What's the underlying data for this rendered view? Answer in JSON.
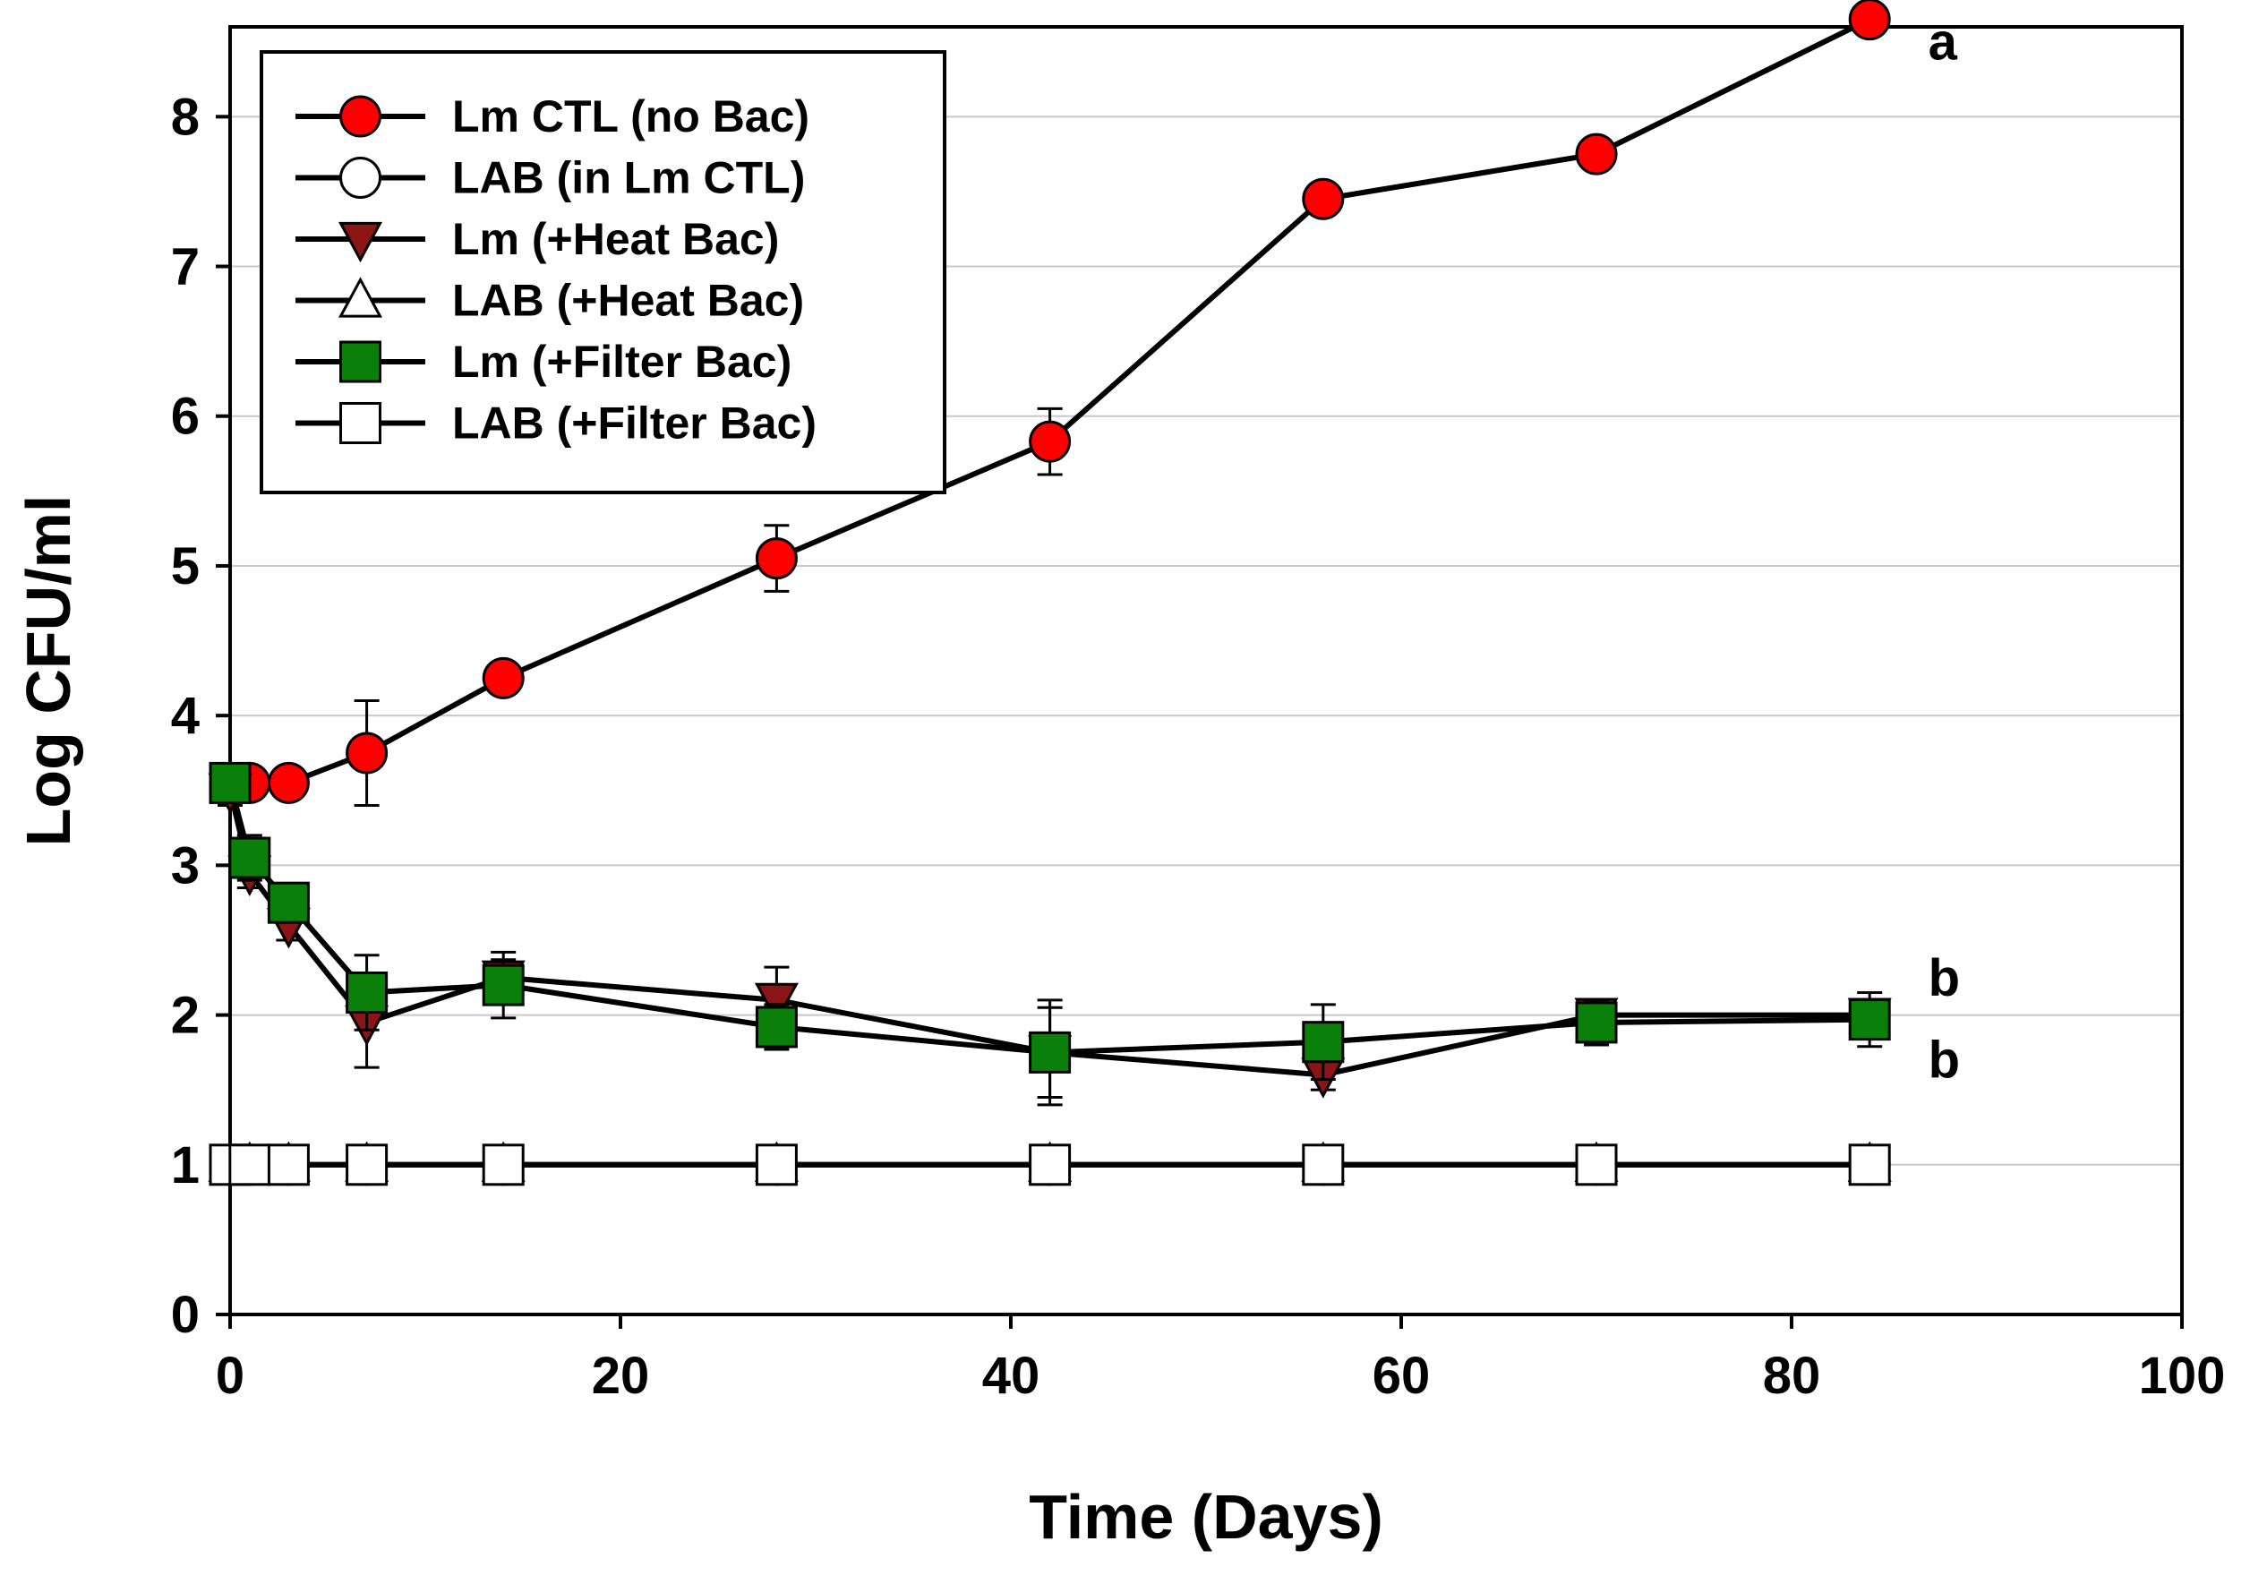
{
  "chart_data": {
    "type": "line",
    "title": "",
    "xlabel": "Time (Days)",
    "ylabel": "Log CFU/ml",
    "xlim": [
      0,
      100
    ],
    "ylim": [
      0,
      8.6
    ],
    "xticks": [
      0,
      20,
      40,
      60,
      80,
      100
    ],
    "yticks": [
      0,
      1,
      2,
      3,
      4,
      5,
      6,
      7,
      8
    ],
    "grid": "horizontal",
    "legend_position": "top-left",
    "x": [
      0,
      1,
      3,
      7,
      14,
      28,
      42,
      56,
      70,
      84
    ],
    "series": [
      {
        "name": "Lm CTL (no Bac)",
        "marker": "circle",
        "fill": "#ff0000",
        "values": [
          3.55,
          3.55,
          3.55,
          3.75,
          4.25,
          5.05,
          5.83,
          7.45,
          7.75,
          8.65
        ],
        "errors": [
          0.08,
          0.05,
          0.05,
          0.35,
          0.06,
          0.22,
          0.22,
          0.08,
          0.06,
          0.05
        ]
      },
      {
        "name": "LAB (in Lm CTL)",
        "marker": "circle",
        "fill": "#ffffff",
        "values": [
          1,
          1,
          1,
          1,
          1,
          1,
          1,
          1,
          1,
          1
        ],
        "errors": [
          0,
          0,
          0,
          0,
          0,
          0,
          0,
          0,
          0,
          0
        ]
      },
      {
        "name": "Lm (+Heat Bac)",
        "marker": "triangle-down",
        "fill": "#8b1414",
        "values": [
          3.5,
          2.95,
          2.6,
          1.95,
          2.25,
          2.1,
          1.75,
          1.6,
          2.0,
          2.0
        ],
        "errors": [
          0.1,
          0.1,
          0.1,
          0.3,
          0.12,
          0.22,
          0.35,
          0.1,
          0.1,
          0.1
        ]
      },
      {
        "name": "LAB (+Heat Bac)",
        "marker": "triangle-up",
        "fill": "#ffffff",
        "values": [
          1,
          1,
          1,
          1,
          1,
          1,
          1,
          1,
          1,
          1
        ],
        "errors": [
          0,
          0,
          0,
          0,
          0,
          0,
          0,
          0,
          0,
          0
        ]
      },
      {
        "name": "Lm (+Filter Bac)",
        "marker": "square",
        "fill": "#0a7f0a",
        "values": [
          3.55,
          3.05,
          2.75,
          2.15,
          2.2,
          1.92,
          1.75,
          1.82,
          1.95,
          1.97
        ],
        "errors": [
          0.05,
          0.15,
          0.1,
          0.25,
          0.22,
          0.15,
          0.3,
          0.25,
          0.15,
          0.18
        ]
      },
      {
        "name": "LAB (+Filter Bac)",
        "marker": "square",
        "fill": "#ffffff",
        "values": [
          1,
          1,
          1,
          1,
          1,
          1,
          1,
          1,
          1,
          1
        ],
        "errors": [
          0,
          0,
          0,
          0,
          0,
          0,
          0,
          0,
          0,
          0
        ]
      }
    ],
    "annotations": [
      {
        "text": "a",
        "x": 87,
        "y": 8.5
      },
      {
        "text": "b",
        "x": 87,
        "y": 2.25
      },
      {
        "text": "b",
        "x": 87,
        "y": 1.7
      }
    ]
  },
  "colors": {
    "grid": "#c8c8c8",
    "axis": "#000000",
    "line": "#000000"
  }
}
